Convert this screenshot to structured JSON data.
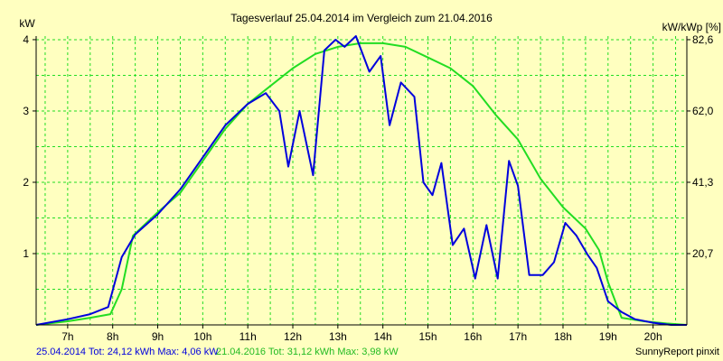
{
  "chart_data": {
    "type": "line",
    "title": "Tagesverlauf 25.04.2014 im Vergleich zum 21.04.2016",
    "ylabel_left": "kW",
    "ylabel_right": "kW/kWp [%]",
    "xlim": [
      6.3,
      20.75
    ],
    "ylim": [
      0,
      4.05
    ],
    "x_ticks": [
      {
        "value": 7,
        "label": "7h"
      },
      {
        "value": 8,
        "label": "8h"
      },
      {
        "value": 9,
        "label": "9h"
      },
      {
        "value": 10,
        "label": "10h"
      },
      {
        "value": 11,
        "label": "11h"
      },
      {
        "value": 12,
        "label": "12h"
      },
      {
        "value": 13,
        "label": "13h"
      },
      {
        "value": 14,
        "label": "14h"
      },
      {
        "value": 15,
        "label": "15h"
      },
      {
        "value": 16,
        "label": "16h"
      },
      {
        "value": 17,
        "label": "17h"
      },
      {
        "value": 18,
        "label": "18h"
      },
      {
        "value": 19,
        "label": "19h"
      },
      {
        "value": 20,
        "label": "20h"
      }
    ],
    "y_ticks_left": [
      {
        "value": 1,
        "label": "1"
      },
      {
        "value": 2,
        "label": "2"
      },
      {
        "value": 3,
        "label": "3"
      },
      {
        "value": 4,
        "label": "4"
      }
    ],
    "y_ticks_right": [
      {
        "value": 1.0,
        "label": "20,7"
      },
      {
        "value": 2.0,
        "label": "41,3"
      },
      {
        "value": 3.0,
        "label": "62,0"
      },
      {
        "value": 4.0,
        "label": "82,6"
      }
    ],
    "grid": true,
    "series": [
      {
        "name": "25.04.2014",
        "color": "#0000DD",
        "points": [
          [
            6.3,
            0.0
          ],
          [
            7.0,
            0.08
          ],
          [
            7.5,
            0.15
          ],
          [
            7.9,
            0.25
          ],
          [
            8.2,
            0.95
          ],
          [
            8.5,
            1.27
          ],
          [
            9.0,
            1.55
          ],
          [
            9.5,
            1.9
          ],
          [
            10.0,
            2.35
          ],
          [
            10.5,
            2.8
          ],
          [
            11.0,
            3.1
          ],
          [
            11.4,
            3.25
          ],
          [
            11.7,
            3.0
          ],
          [
            11.9,
            2.22
          ],
          [
            12.15,
            3.0
          ],
          [
            12.45,
            2.1
          ],
          [
            12.7,
            3.85
          ],
          [
            12.95,
            4.0
          ],
          [
            13.15,
            3.9
          ],
          [
            13.4,
            4.05
          ],
          [
            13.7,
            3.55
          ],
          [
            13.95,
            3.77
          ],
          [
            14.15,
            2.8
          ],
          [
            14.4,
            3.4
          ],
          [
            14.7,
            3.2
          ],
          [
            14.9,
            2.0
          ],
          [
            15.1,
            1.82
          ],
          [
            15.3,
            2.27
          ],
          [
            15.55,
            1.12
          ],
          [
            15.8,
            1.35
          ],
          [
            16.05,
            0.65
          ],
          [
            16.3,
            1.4
          ],
          [
            16.55,
            0.65
          ],
          [
            16.8,
            2.3
          ],
          [
            17.0,
            1.95
          ],
          [
            17.25,
            0.7
          ],
          [
            17.55,
            0.7
          ],
          [
            17.8,
            0.88
          ],
          [
            18.05,
            1.43
          ],
          [
            18.3,
            1.25
          ],
          [
            18.55,
            0.98
          ],
          [
            18.75,
            0.8
          ],
          [
            19.0,
            0.33
          ],
          [
            19.3,
            0.18
          ],
          [
            19.6,
            0.08
          ],
          [
            20.0,
            0.03
          ],
          [
            20.4,
            0.0
          ],
          [
            20.75,
            0.0
          ]
        ]
      },
      {
        "name": "21.04.2016",
        "color": "#22DD22",
        "points": [
          [
            6.3,
            0.0
          ],
          [
            7.0,
            0.05
          ],
          [
            7.5,
            0.1
          ],
          [
            7.95,
            0.15
          ],
          [
            8.2,
            0.5
          ],
          [
            8.45,
            1.25
          ],
          [
            9.0,
            1.58
          ],
          [
            9.5,
            1.85
          ],
          [
            10.0,
            2.3
          ],
          [
            10.5,
            2.75
          ],
          [
            11.0,
            3.1
          ],
          [
            11.5,
            3.35
          ],
          [
            12.0,
            3.6
          ],
          [
            12.5,
            3.8
          ],
          [
            13.0,
            3.9
          ],
          [
            13.5,
            3.95
          ],
          [
            14.0,
            3.95
          ],
          [
            14.5,
            3.9
          ],
          [
            15.0,
            3.75
          ],
          [
            15.5,
            3.6
          ],
          [
            16.0,
            3.35
          ],
          [
            16.5,
            2.95
          ],
          [
            17.0,
            2.6
          ],
          [
            17.5,
            2.05
          ],
          [
            18.0,
            1.65
          ],
          [
            18.5,
            1.35
          ],
          [
            18.8,
            1.05
          ],
          [
            19.0,
            0.6
          ],
          [
            19.3,
            0.1
          ],
          [
            19.8,
            0.05
          ],
          [
            20.3,
            0.02
          ],
          [
            20.75,
            0.0
          ]
        ]
      }
    ]
  },
  "footer": {
    "series1_summary": "25.04.2014 Tot: 24,12 kWh Max: 4,06 kW",
    "series2_summary": "21.04.2016 Tot: 31,12 kWh Max: 3,98 kW",
    "brand": "SunnyReport pinxit"
  }
}
